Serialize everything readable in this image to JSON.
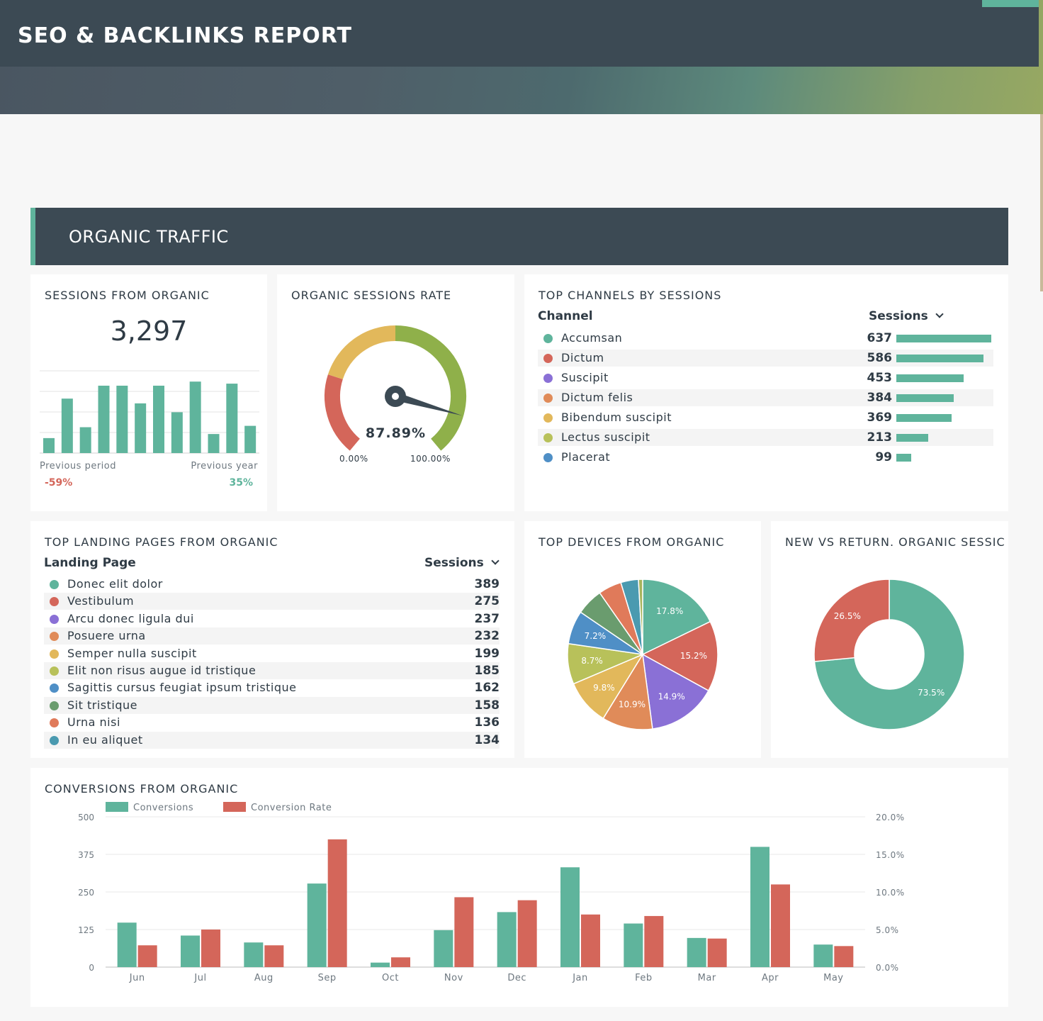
{
  "header": {
    "title": "SEO & BACKLINKS REPORT"
  },
  "section": {
    "title": "ORGANIC TRAFFIC"
  },
  "colors": {
    "teal": "#5fb49c",
    "red": "#d4665a",
    "purple": "#8a70d6",
    "orange": "#e08b59",
    "yellow": "#e2b85b",
    "lime": "#b8c15a",
    "blue": "#4f8fc6",
    "green": "#6a9c6e",
    "dark": "#3c4a54"
  },
  "sessions": {
    "title": "SESSIONS FROM ORGANIC",
    "value": "3,297",
    "previous_period_label": "Previous period",
    "previous_period_value": "-59%",
    "previous_year_label": "Previous year",
    "previous_year_value": "35%",
    "chart_data": {
      "type": "bar",
      "values": [
        0.22,
        0.8,
        0.38,
        0.99,
        0.99,
        0.73,
        0.99,
        0.6,
        1.05,
        0.28,
        1.02,
        0.4
      ]
    }
  },
  "gauge": {
    "title": "ORGANIC SESSIONS RATE",
    "value": "87.89%",
    "value_num": 87.89,
    "min_label": "0.00%",
    "max_label": "100.00%"
  },
  "channels": {
    "title": "TOP CHANNELS BY SESSIONS",
    "col_label": "Channel",
    "col_value": "Sessions",
    "items": [
      {
        "label": "Accumsan",
        "value": "637",
        "n": 637,
        "color": "#5fb49c"
      },
      {
        "label": "Dictum",
        "value": "586",
        "n": 586,
        "color": "#d4665a"
      },
      {
        "label": "Suscipit",
        "value": "453",
        "n": 453,
        "color": "#8a70d6"
      },
      {
        "label": "Dictum felis",
        "value": "384",
        "n": 384,
        "color": "#e08b59"
      },
      {
        "label": "Bibendum suscipit",
        "value": "369",
        "n": 369,
        "color": "#e2b85b"
      },
      {
        "label": "Lectus suscipit",
        "value": "213",
        "n": 213,
        "color": "#b8c15a"
      },
      {
        "label": "Placerat",
        "value": "99",
        "n": 99,
        "color": "#4f8fc6"
      }
    ]
  },
  "landing": {
    "title": "TOP LANDING PAGES FROM ORGANIC",
    "col_label": "Landing Page",
    "col_value": "Sessions",
    "items": [
      {
        "label": "Donec elit dolor",
        "value": "389",
        "color": "#5fb49c"
      },
      {
        "label": "Vestibulum",
        "value": "275",
        "color": "#d4665a"
      },
      {
        "label": "Arcu donec ligula dui",
        "value": "237",
        "color": "#8a70d6"
      },
      {
        "label": "Posuere urna",
        "value": "232",
        "color": "#e08b59"
      },
      {
        "label": "Semper nulla suscipit",
        "value": "199",
        "color": "#e2b85b"
      },
      {
        "label": "Elit non risus augue id tristique",
        "value": "185",
        "color": "#b8c15a"
      },
      {
        "label": "Sagittis cursus feugiat ipsum tristique",
        "value": "162",
        "color": "#4f8fc6"
      },
      {
        "label": "Sit tristique",
        "value": "158",
        "color": "#6a9c6e"
      },
      {
        "label": "Urna nisi",
        "value": "136",
        "color": "#e07a5a"
      },
      {
        "label": "In eu aliquet",
        "value": "134",
        "color": "#4a9ab0"
      }
    ]
  },
  "devices": {
    "title": "TOP DEVICES FROM ORGANIC",
    "chart_data": {
      "type": "pie",
      "slices": [
        {
          "label": "17.8%",
          "value": 17.8,
          "color": "#5fb49c"
        },
        {
          "label": "15.2%",
          "value": 15.2,
          "color": "#d4665a"
        },
        {
          "label": "14.9%",
          "value": 14.9,
          "color": "#8a70d6"
        },
        {
          "label": "10.9%",
          "value": 10.9,
          "color": "#e08b59"
        },
        {
          "label": "9.8%",
          "value": 9.8,
          "color": "#e2b85b"
        },
        {
          "label": "8.7%",
          "value": 8.7,
          "color": "#b8c15a"
        },
        {
          "label": "7.2%",
          "value": 7.2,
          "color": "#4f8fc6"
        },
        {
          "label": "",
          "value": 5.8,
          "color": "#6a9c6e"
        },
        {
          "label": "",
          "value": 5.0,
          "color": "#e07a5a"
        },
        {
          "label": "",
          "value": 3.8,
          "color": "#4a9ab0"
        },
        {
          "label": "",
          "value": 0.9,
          "color": "#a7b45c"
        }
      ]
    }
  },
  "newret": {
    "title": "NEW VS RETURN. ORGANIC SESSIC",
    "chart_data": {
      "type": "pie",
      "slices": [
        {
          "label": "73.5%",
          "value": 73.5,
          "color": "#5fb49c"
        },
        {
          "label": "26.5%",
          "value": 26.5,
          "color": "#d4665a"
        }
      ]
    }
  },
  "conversions": {
    "title": "CONVERSIONS FROM ORGANIC",
    "chart_data": {
      "type": "bar",
      "categories": [
        "Jun",
        "Jul",
        "Aug",
        "Sep",
        "Oct",
        "Nov",
        "Dec",
        "Jan",
        "Feb",
        "Mar",
        "Apr",
        "May"
      ],
      "series": [
        {
          "name": "Conversions",
          "color": "#5fb49c",
          "values": [
            148,
            105,
            82,
            278,
            15,
            123,
            183,
            332,
            145,
            97,
            400,
            75
          ]
        },
        {
          "name": "Conversion Rate",
          "color": "#d4665a",
          "values": [
            2.9,
            5.0,
            2.9,
            17.0,
            1.3,
            9.3,
            8.9,
            7.0,
            6.8,
            3.8,
            11.0,
            2.8
          ]
        }
      ],
      "yticks_left": [
        "500",
        "375",
        "250",
        "125",
        "0"
      ],
      "yticks_right": [
        "20.0%",
        "15.0%",
        "10.0%",
        "5.0%",
        "0.0%"
      ],
      "ylim_left": [
        0,
        500
      ],
      "ylim_right": [
        0,
        20
      ]
    }
  }
}
